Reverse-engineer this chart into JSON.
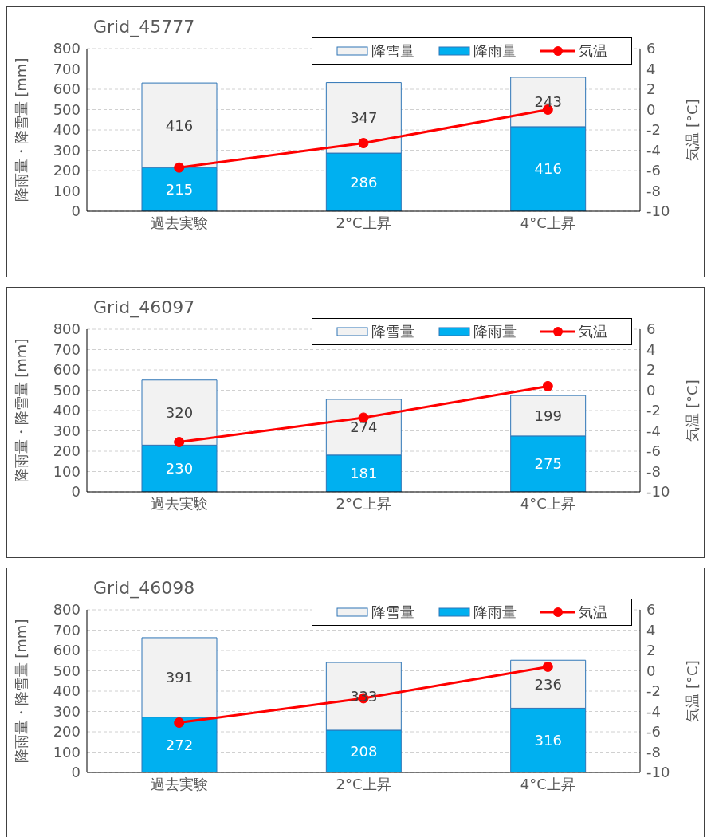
{
  "chart_data": [
    {
      "type": "bar",
      "title": "Grid_45777",
      "ylabel": "降雨量・降雪量 [mm]",
      "y2label": "気温 [°C]",
      "categories": [
        "過去実験",
        "2°C上昇",
        "4°C上昇"
      ],
      "stacked": true,
      "ylim": [
        0,
        800
      ],
      "yticks": [
        0,
        100,
        200,
        300,
        400,
        500,
        600,
        700,
        800
      ],
      "y2lim": [
        -10,
        6
      ],
      "y2ticks": [
        -10,
        -8,
        -6,
        -4,
        -2,
        0,
        2,
        4,
        6
      ],
      "grid": "y",
      "legend": "top right",
      "marker": "circle",
      "series": [
        {
          "name": "降雨量",
          "color": "#00b0f0",
          "values": [
            215,
            286,
            416
          ],
          "value_labels": [
            "215",
            "286",
            "416"
          ]
        },
        {
          "name": "降雪量",
          "color": "#f2f2f2",
          "values": [
            416,
            347,
            243
          ],
          "value_labels": [
            "416",
            "347",
            "243"
          ]
        },
        {
          "name": "気温",
          "type": "line",
          "axis": "y2",
          "color": "#ff0000",
          "values": [
            -5.7,
            -3.3,
            0.0
          ]
        }
      ]
    },
    {
      "type": "bar",
      "title": "Grid_46097",
      "ylabel": "降雨量・降雪量 [mm]",
      "y2label": "気温 [°C]",
      "categories": [
        "過去実験",
        "2°C上昇",
        "4°C上昇"
      ],
      "stacked": true,
      "ylim": [
        0,
        800
      ],
      "yticks": [
        0,
        100,
        200,
        300,
        400,
        500,
        600,
        700,
        800
      ],
      "y2lim": [
        -10,
        6
      ],
      "y2ticks": [
        -10,
        -8,
        -6,
        -4,
        -2,
        0,
        2,
        4,
        6
      ],
      "grid": "y",
      "legend": "top right",
      "marker": "circle",
      "series": [
        {
          "name": "降雨量",
          "color": "#00b0f0",
          "values": [
            230,
            181,
            275
          ],
          "value_labels": [
            "230",
            "181",
            "275"
          ]
        },
        {
          "name": "降雪量",
          "color": "#f2f2f2",
          "values": [
            320,
            274,
            199
          ],
          "value_labels": [
            "320",
            "274",
            "199"
          ]
        },
        {
          "name": "気温",
          "type": "line",
          "axis": "y2",
          "color": "#ff0000",
          "values": [
            -5.1,
            -2.7,
            0.4
          ]
        }
      ]
    },
    {
      "type": "bar",
      "title": "Grid_46098",
      "ylabel": "降雨量・降雪量 [mm]",
      "y2label": "気温 [°C]",
      "categories": [
        "過去実験",
        "2°C上昇",
        "4°C上昇"
      ],
      "stacked": true,
      "ylim": [
        0,
        800
      ],
      "yticks": [
        0,
        100,
        200,
        300,
        400,
        500,
        600,
        700,
        800
      ],
      "y2lim": [
        -10,
        6
      ],
      "y2ticks": [
        -10,
        -8,
        -6,
        -4,
        -2,
        0,
        2,
        4,
        6
      ],
      "grid": "y",
      "legend": "top right",
      "marker": "circle",
      "series": [
        {
          "name": "降雨量",
          "color": "#00b0f0",
          "values": [
            272,
            208,
            316
          ],
          "value_labels": [
            "272",
            "208",
            "316"
          ]
        },
        {
          "name": "降雪量",
          "color": "#f2f2f2",
          "values": [
            391,
            333,
            236
          ],
          "value_labels": [
            "391",
            "333",
            "236"
          ]
        },
        {
          "name": "気温",
          "type": "line",
          "axis": "y2",
          "color": "#ff0000",
          "values": [
            -5.1,
            -2.7,
            0.4
          ]
        }
      ]
    }
  ]
}
